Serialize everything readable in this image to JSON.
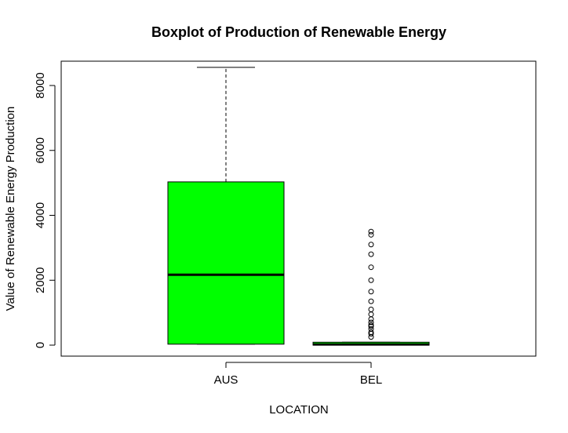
{
  "chart_data": {
    "type": "boxplot",
    "title": "Boxplot of Production of Renewable Energy",
    "xlabel": "LOCATION",
    "ylabel": "Value of Renewable Energy Production",
    "categories": [
      "AUS",
      "BEL"
    ],
    "ylim": [
      -300,
      8800
    ],
    "yticks": [
      0,
      2000,
      4000,
      6000,
      8000
    ],
    "box_color": "#00ff00",
    "boxes": [
      {
        "name": "AUS",
        "min": 30,
        "q1": 30,
        "median": 2170,
        "q3": 5030,
        "max": 8560,
        "outliers": []
      },
      {
        "name": "BEL",
        "min": 0,
        "q1": 0,
        "median": 20,
        "q3": 90,
        "max": 90,
        "outliers": [
          250,
          350,
          400,
          500,
          580,
          620,
          700,
          800,
          950,
          1100,
          1350,
          1650,
          2000,
          2400,
          2800,
          3100,
          3400,
          3500
        ]
      }
    ]
  }
}
